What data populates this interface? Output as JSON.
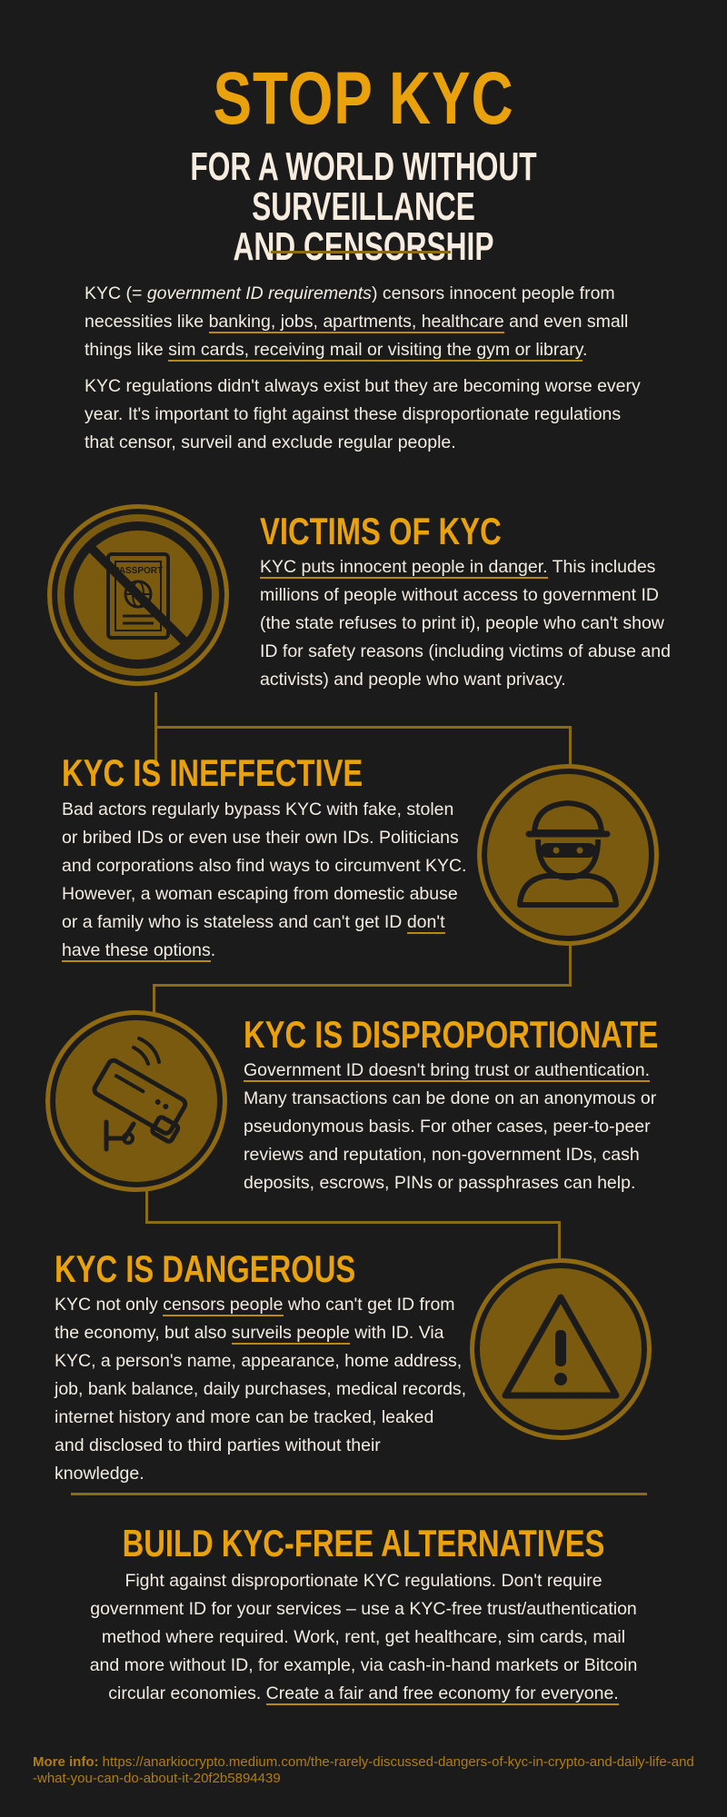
{
  "header": {
    "title": "STOP KYC",
    "subtitle_line1": "FOR A WORLD WITHOUT SURVEILLANCE",
    "subtitle_line2": "AND CENSORSHIP"
  },
  "intro": {
    "p1_a": "KYC (= ",
    "p1_b": "government ID requirements",
    "p1_c": ") censors innocent people from necessities like ",
    "p1_link1": "banking, jobs, apartments, healthcare",
    "p1_d": " and even small things like ",
    "p1_link2": "sim cards, receiving mail or visiting the gym or library",
    "p1_e": ".",
    "p2": "KYC regulations didn't always exist but they are becoming worse every year. It's important to fight against these disproportionate regulations that censor, surveil and exclude regular people."
  },
  "sections": {
    "victims": {
      "heading": "VICTIMS OF KYC",
      "lead": "KYC puts innocent people in danger.",
      "body": " This includes millions of people without access to government ID (the state refuses to print it), people who can't show ID for safety reasons (including victims of abuse and activists) and people who want privacy.",
      "icon_label": "PASSPORT"
    },
    "ineffective": {
      "heading": "KYC IS INEFFECTIVE",
      "body": "Bad actors regularly bypass KYC with fake, stolen or bribed IDs or even use their own IDs. Politicians and corporations also find ways to circumvent KYC. However, a woman escaping from domestic abuse or a family who is stateless and can't get ID ",
      "tail": "don't have these options",
      "end": "."
    },
    "disproportionate": {
      "heading": "KYC IS DISPROPORTIONATE",
      "lead": "Government ID doesn't bring trust or authentication.",
      "body": " Many transactions can be done on an anonymous or pseudonymous basis. For other cases, peer-to-peer reviews and reputation, non-government IDs, cash deposits, escrows, PINs or passphrases can help."
    },
    "dangerous": {
      "heading": "KYC IS DANGEROUS",
      "a": "KYC not only ",
      "link1": "censors people",
      "b": " who can't get ID from the economy, but also ",
      "link2": "surveils people",
      "c": " with ID. Via KYC, a person's name, appearance, home address, job, bank balance, daily purchases, medical records, internet history and more can be tracked, leaked and disclosed to third parties without their knowledge."
    },
    "build": {
      "heading": "BUILD KYC-FREE ALTERNATIVES",
      "body": "Fight against disproportionate KYC regulations. Don't require government ID for your services – use a KYC-free trust/authentication method where required. Work, rent, get healthcare, sim cards, mail and more without ID, for example, via cash-in-hand markets or Bitcoin circular economies. ",
      "link": "Create a fair and free economy for everyone."
    }
  },
  "footer": {
    "label": "More info:",
    "url": "https://anarkiocrypto.medium.com/the-rarely-discussed-dangers-of-kyc-in-crypto-and-daily-life-and-what-you-can-do-about-it-20f2b5894439"
  },
  "colors": {
    "background": "#1c1b1b",
    "accent": "#e9a10c",
    "circle": "#7a5a0e",
    "text": "#f3ece2"
  },
  "icons": [
    "no-passport-icon",
    "burglar-icon",
    "security-camera-icon",
    "warning-icon"
  ]
}
